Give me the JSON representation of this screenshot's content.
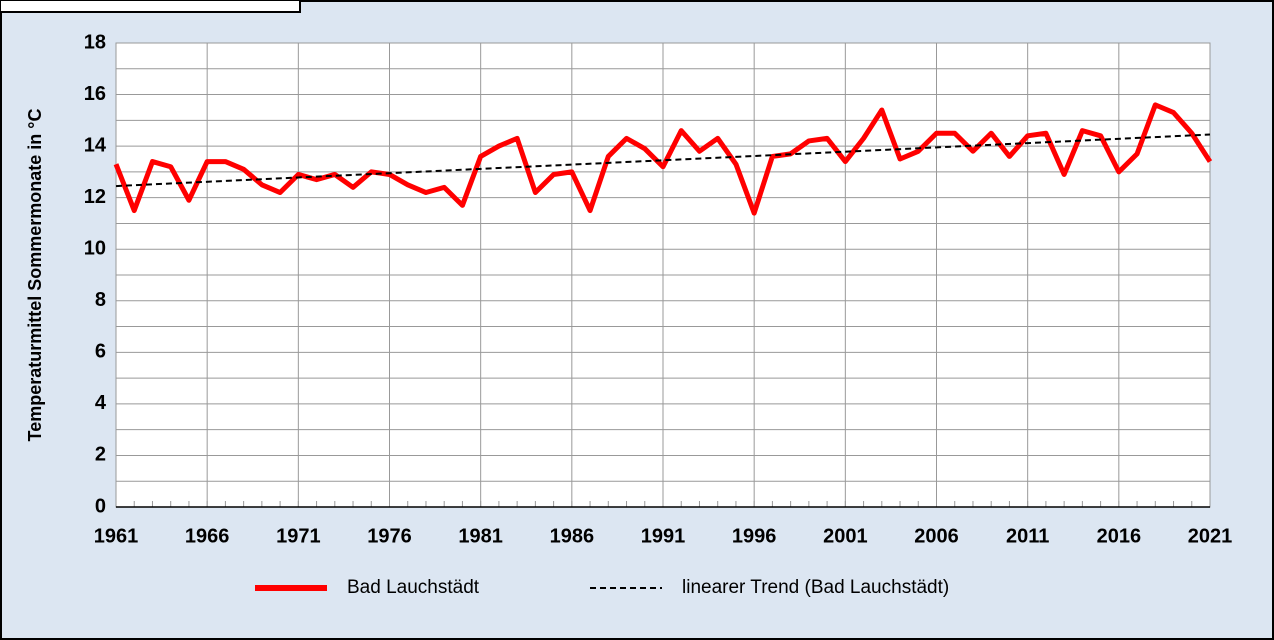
{
  "chart_data": {
    "type": "line",
    "ylabel": "Temperaturmittel Sommermonate in °C",
    "x": [
      1961,
      1962,
      1963,
      1964,
      1965,
      1966,
      1967,
      1968,
      1969,
      1970,
      1971,
      1972,
      1973,
      1974,
      1975,
      1976,
      1977,
      1978,
      1979,
      1980,
      1981,
      1982,
      1983,
      1984,
      1985,
      1986,
      1987,
      1988,
      1989,
      1990,
      1991,
      1992,
      1993,
      1994,
      1995,
      1996,
      1997,
      1998,
      1999,
      2000,
      2001,
      2002,
      2003,
      2004,
      2005,
      2006,
      2007,
      2008,
      2009,
      2010,
      2011,
      2012,
      2013,
      2014,
      2015,
      2016,
      2017,
      2018,
      2019,
      2020,
      2021
    ],
    "series": [
      {
        "name": "Bad Lauchstädt",
        "color": "#ff0000",
        "values": [
          13.3,
          11.5,
          13.4,
          13.2,
          11.9,
          13.4,
          13.4,
          13.1,
          12.5,
          12.2,
          12.9,
          12.7,
          12.9,
          12.4,
          13.0,
          12.9,
          12.5,
          12.2,
          12.4,
          11.7,
          13.6,
          14.0,
          14.3,
          12.2,
          12.9,
          13.0,
          11.5,
          13.6,
          14.3,
          13.9,
          13.2,
          14.6,
          13.8,
          14.3,
          13.3,
          11.4,
          13.6,
          13.7,
          14.2,
          14.3,
          13.4,
          14.3,
          15.4,
          13.5,
          13.8,
          14.5,
          14.5,
          13.8,
          14.5,
          13.6,
          14.4,
          14.5,
          12.9,
          14.6,
          14.4,
          13.0,
          13.7,
          15.6,
          15.3,
          14.5,
          13.4
        ]
      },
      {
        "name": "linearer Trend (Bad Lauchstädt)",
        "color": "#000000",
        "dashed": true,
        "x": [
          1961,
          2021
        ],
        "values": [
          12.45,
          14.45
        ]
      }
    ],
    "xlim": [
      1961,
      2021
    ],
    "xticks": [
      1961,
      1966,
      1971,
      1976,
      1981,
      1986,
      1991,
      1996,
      2001,
      2006,
      2011,
      2016,
      2021
    ],
    "ylim": [
      0,
      18
    ],
    "yticks": [
      0,
      2,
      4,
      6,
      8,
      10,
      12,
      14,
      16,
      18
    ],
    "grid": true
  }
}
